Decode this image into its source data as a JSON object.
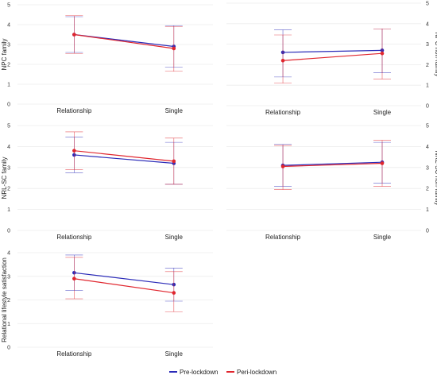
{
  "legend": {
    "entries": [
      {
        "label": "Pre-lockdown",
        "color": "#2b2bb8"
      },
      {
        "label": "Peri-lockdown",
        "color": "#e0262e"
      }
    ]
  },
  "chart_data": [
    {
      "type": "line",
      "ylabel": "NPC family",
      "categories": [
        "Relationship",
        "Single"
      ],
      "ylim": [
        0,
        5
      ],
      "yticks": [
        0,
        1,
        2,
        3,
        4,
        5
      ],
      "y_axis_side": "left",
      "grid": true,
      "series": [
        {
          "name": "Pre-lockdown",
          "values": [
            3.5,
            2.9
          ],
          "err_low": [
            2.6,
            1.85
          ],
          "err_high": [
            4.4,
            3.95
          ]
        },
        {
          "name": "Peri-lockdown",
          "values": [
            3.5,
            2.8
          ],
          "err_low": [
            2.55,
            1.65
          ],
          "err_high": [
            4.45,
            3.9
          ]
        }
      ]
    },
    {
      "type": "line",
      "ylabel": "NPC non-family",
      "categories": [
        "Relationship",
        "Single"
      ],
      "ylim": [
        0,
        5
      ],
      "yticks": [
        0,
        1,
        2,
        3,
        4,
        5
      ],
      "y_axis_side": "right",
      "grid": true,
      "series": [
        {
          "name": "Pre-lockdown",
          "values": [
            2.6,
            2.7
          ],
          "err_low": [
            1.4,
            1.6
          ],
          "err_high": [
            3.7,
            3.75
          ]
        },
        {
          "name": "Peri-lockdown",
          "values": [
            2.2,
            2.55
          ],
          "err_low": [
            1.1,
            1.3
          ],
          "err_high": [
            3.45,
            3.75
          ]
        }
      ]
    },
    {
      "type": "line",
      "ylabel": "NRL-SC family",
      "categories": [
        "Relationship",
        "Single"
      ],
      "ylim": [
        0,
        5
      ],
      "yticks": [
        0,
        1,
        2,
        3,
        4,
        5
      ],
      "y_axis_side": "left",
      "grid": true,
      "series": [
        {
          "name": "Pre-lockdown",
          "values": [
            3.6,
            3.2
          ],
          "err_low": [
            2.75,
            2.2
          ],
          "err_high": [
            4.45,
            4.2
          ]
        },
        {
          "name": "Peri-lockdown",
          "values": [
            3.8,
            3.3
          ],
          "err_low": [
            2.9,
            2.2
          ],
          "err_high": [
            4.7,
            4.4
          ]
        }
      ]
    },
    {
      "type": "line",
      "ylabel": "NRL-SC non-family",
      "categories": [
        "Relationship",
        "Single"
      ],
      "ylim": [
        0,
        5
      ],
      "yticks": [
        0,
        1,
        2,
        3,
        4,
        5
      ],
      "y_axis_side": "right",
      "grid": true,
      "series": [
        {
          "name": "Pre-lockdown",
          "values": [
            3.1,
            3.25
          ],
          "err_low": [
            2.1,
            2.25
          ],
          "err_high": [
            4.1,
            4.2
          ]
        },
        {
          "name": "Peri-lockdown",
          "values": [
            3.05,
            3.2
          ],
          "err_low": [
            1.95,
            2.1
          ],
          "err_high": [
            4.05,
            4.3
          ]
        }
      ]
    },
    {
      "type": "line",
      "ylabel": "Relational lifestyle satisfaction",
      "categories": [
        "Relationship",
        "Single"
      ],
      "ylim": [
        0,
        4
      ],
      "yticks": [
        0,
        1,
        2,
        3,
        4
      ],
      "y_axis_side": "left",
      "grid": true,
      "series": [
        {
          "name": "Pre-lockdown",
          "values": [
            3.15,
            2.65
          ],
          "err_low": [
            2.4,
            1.95
          ],
          "err_high": [
            3.9,
            3.35
          ]
        },
        {
          "name": "Peri-lockdown",
          "values": [
            2.9,
            2.3
          ],
          "err_low": [
            2.05,
            1.5
          ],
          "err_high": [
            3.8,
            3.2
          ]
        }
      ]
    }
  ]
}
